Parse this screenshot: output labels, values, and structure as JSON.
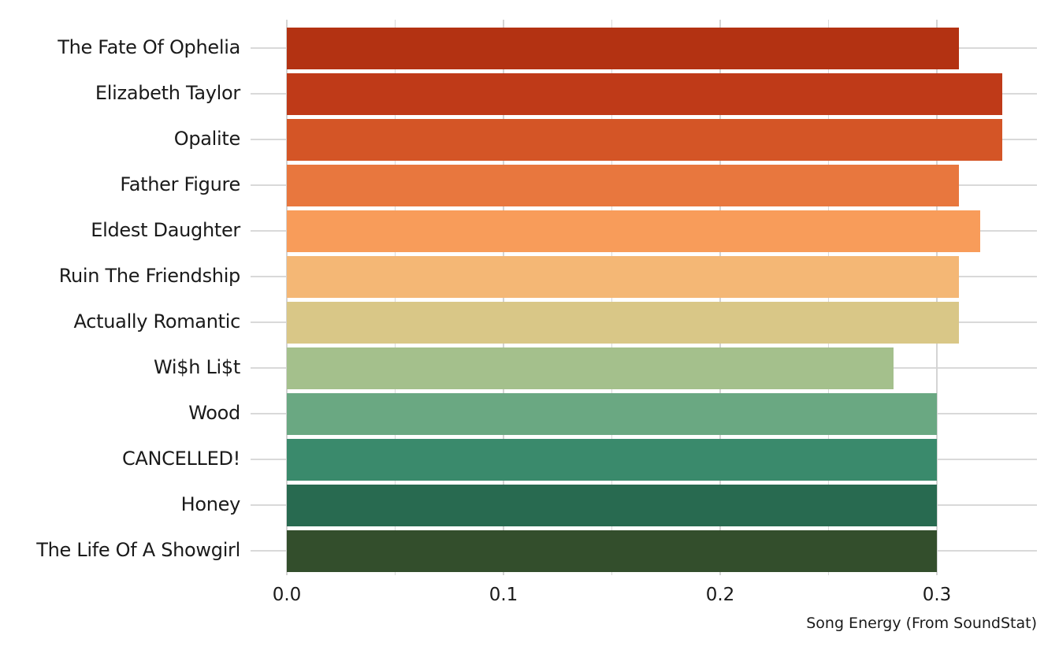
{
  "chart_data": {
    "type": "bar",
    "orientation": "horizontal",
    "title": "",
    "xlabel": "Song Energy (From SoundStat)",
    "ylabel": "",
    "xlim": [
      0,
      0.345
    ],
    "x_ticks": [
      "0.0",
      "0.1",
      "0.2",
      "0.3"
    ],
    "x_tick_values": [
      0.0,
      0.1,
      0.2,
      0.3
    ],
    "grid": true,
    "legend": null,
    "categories": [
      "The Fate Of Ophelia",
      "Elizabeth Taylor",
      "Opalite",
      "Father Figure",
      "Eldest Daughter",
      "Ruin The Friendship",
      "Actually Romantic",
      "Wi$h Li$t",
      "Wood",
      "CANCELLED!",
      "Honey",
      "The Life Of A Showgirl"
    ],
    "values": [
      0.31,
      0.33,
      0.33,
      0.31,
      0.32,
      0.31,
      0.31,
      0.28,
      0.3,
      0.3,
      0.3,
      0.3
    ],
    "colors": [
      "#b33212",
      "#bf3a18",
      "#d45526",
      "#e8773e",
      "#f89c5a",
      "#f4b775",
      "#d9c787",
      "#a4c08c",
      "#6aa882",
      "#3a8a6c",
      "#286a50",
      "#334e2c"
    ]
  }
}
